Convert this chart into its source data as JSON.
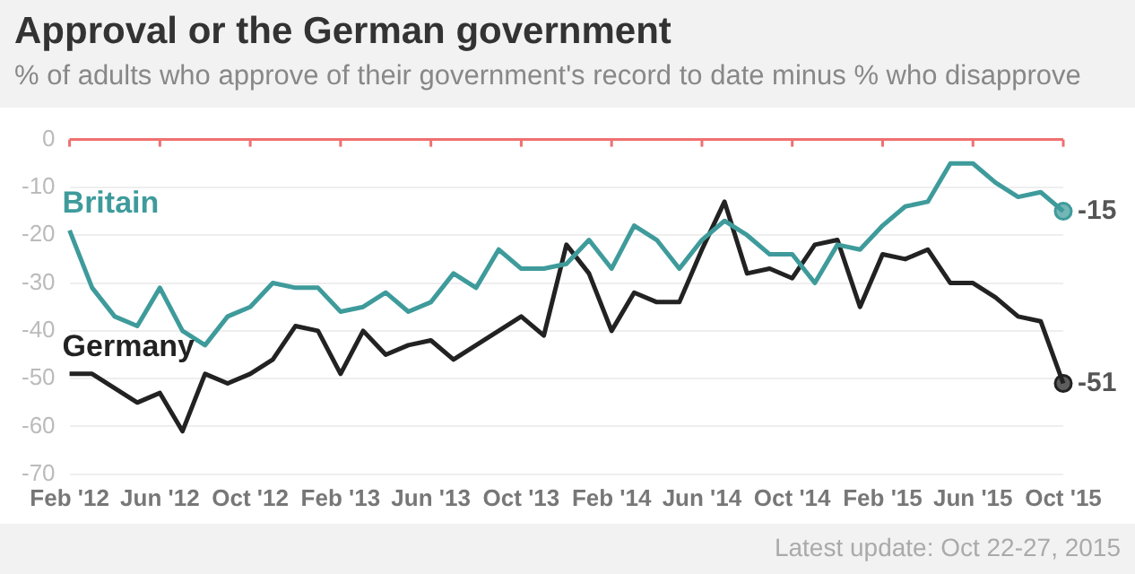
{
  "chart_data": {
    "type": "line",
    "title": "Approval or the German government",
    "subtitle": "% of adults who approve of their government's record to date minus % who disapprove",
    "categories": [
      "Feb '12",
      null,
      null,
      null,
      "Jun '12",
      null,
      null,
      null,
      "Oct '12",
      null,
      null,
      null,
      "Feb '13",
      null,
      null,
      null,
      "Jun '13",
      null,
      null,
      null,
      "Oct '13",
      null,
      null,
      null,
      "Feb '14",
      null,
      null,
      null,
      "Jun '14",
      null,
      null,
      null,
      "Oct '14",
      null,
      null,
      null,
      "Feb '15",
      null,
      null,
      null,
      "Jun '15",
      null,
      null,
      null,
      "Oct '15"
    ],
    "series": [
      {
        "name": "Britain",
        "color": "#3f9b9b",
        "values": [
          -19,
          -31,
          -37,
          -39,
          -31,
          -40,
          -43,
          -37,
          -35,
          -30,
          -31,
          -31,
          -36,
          -35,
          -32,
          -36,
          -34,
          -28,
          -31,
          -23,
          -27,
          -27,
          -26,
          -21,
          -27,
          -18,
          -21,
          -27,
          -21,
          -17,
          -20,
          -24,
          -24,
          -30,
          -22,
          -23,
          -18,
          -14,
          -13,
          -5,
          -5,
          -9,
          -12,
          -11,
          -15
        ],
        "value_labels": [
          null,
          null,
          null,
          null,
          null,
          null,
          null,
          null,
          null,
          null,
          null,
          null,
          null,
          null,
          null,
          null,
          null,
          null,
          null,
          null,
          null,
          null,
          null,
          null,
          null,
          null,
          null,
          null,
          null,
          null,
          null,
          null,
          null,
          null,
          null,
          null,
          null,
          null,
          null,
          null,
          null,
          null,
          null,
          null,
          "-15"
        ]
      },
      {
        "name": "Germany",
        "color": "#222222",
        "values": [
          -49,
          -49,
          -52,
          -55,
          -53,
          -61,
          -49,
          -51,
          -49,
          -46,
          -39,
          -40,
          -49,
          -40,
          -45,
          -43,
          -42,
          -46,
          -43,
          -40,
          -37,
          -41,
          -22,
          -28,
          -40,
          -32,
          -34,
          -34,
          -23,
          -13,
          -28,
          -27,
          -29,
          -22,
          -21,
          -35,
          -24,
          -25,
          -23,
          -30,
          -30,
          -33,
          -37,
          -38,
          -51
        ],
        "value_labels": [
          null,
          null,
          null,
          null,
          null,
          null,
          null,
          null,
          null,
          null,
          null,
          null,
          null,
          null,
          null,
          null,
          null,
          null,
          null,
          null,
          null,
          null,
          null,
          null,
          null,
          null,
          null,
          null,
          null,
          null,
          null,
          null,
          null,
          null,
          null,
          null,
          null,
          null,
          null,
          null,
          null,
          null,
          null,
          null,
          "-51"
        ]
      }
    ],
    "ylim": [
      -70,
      0
    ],
    "yticks": [
      -70,
      -60,
      -50,
      -40,
      -30,
      -20,
      -10,
      0
    ],
    "grid": "y",
    "legend": false,
    "marker": "none",
    "ref_lines": [
      {
        "axis": "y",
        "value": 0,
        "color": "#f07070"
      }
    ],
    "annotations": [
      "Latest update: Oct 22-27, 2015"
    ]
  }
}
